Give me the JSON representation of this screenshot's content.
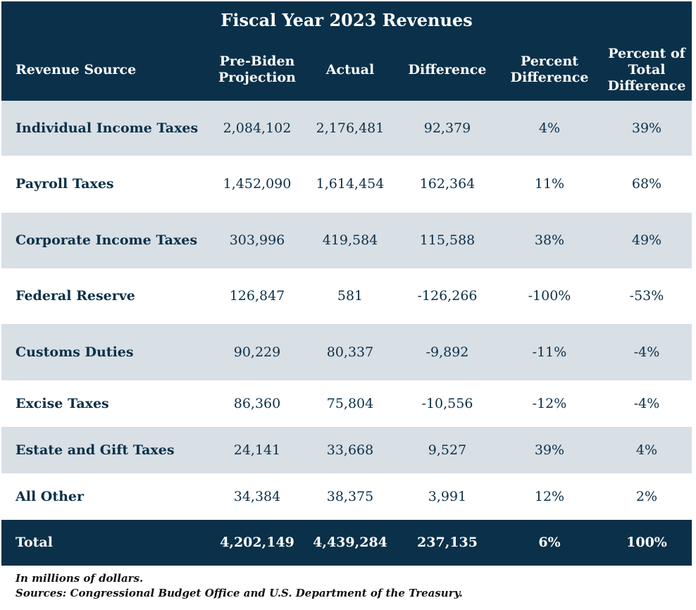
{
  "title": "Fiscal Year 2023 Revenues",
  "table": {
    "headers": [
      "Revenue Source",
      "Pre-Biden Projection",
      "Actual",
      "Difference",
      "Percent Difference",
      "Percent of Total Difference"
    ],
    "rows": [
      [
        "Individual Income Taxes",
        "2,084,102",
        "2,176,481",
        "92,379",
        "4%",
        "39%"
      ],
      [
        "Payroll Taxes",
        "1,452,090",
        "1,614,454",
        "162,364",
        "11%",
        "68%"
      ],
      [
        "Corporate Income Taxes",
        "303,996",
        "419,584",
        "115,588",
        "38%",
        "49%"
      ],
      [
        "Federal Reserve",
        "126,847",
        "581",
        "-126,266",
        "-100%",
        "-53%"
      ],
      [
        "Customs Duties",
        "90,229",
        "80,337",
        "-9,892",
        "-11%",
        "-4%"
      ],
      [
        "Excise Taxes",
        "86,360",
        "75,804",
        "-10,556",
        "-12%",
        "-4%"
      ],
      [
        "Estate and Gift Taxes",
        "24,141",
        "33,668",
        "9,527",
        "39%",
        "4%"
      ],
      [
        "All Other",
        "34,384",
        "38,375",
        "3,991",
        "12%",
        "2%"
      ]
    ],
    "total": [
      "Total",
      "4,202,149",
      "4,439,284",
      "237,135",
      "6%",
      "100%"
    ]
  },
  "notes": [
    "In millions of dollars.",
    "Sources: Congressional Budget Office and U.S. Department of the Treasury."
  ]
}
